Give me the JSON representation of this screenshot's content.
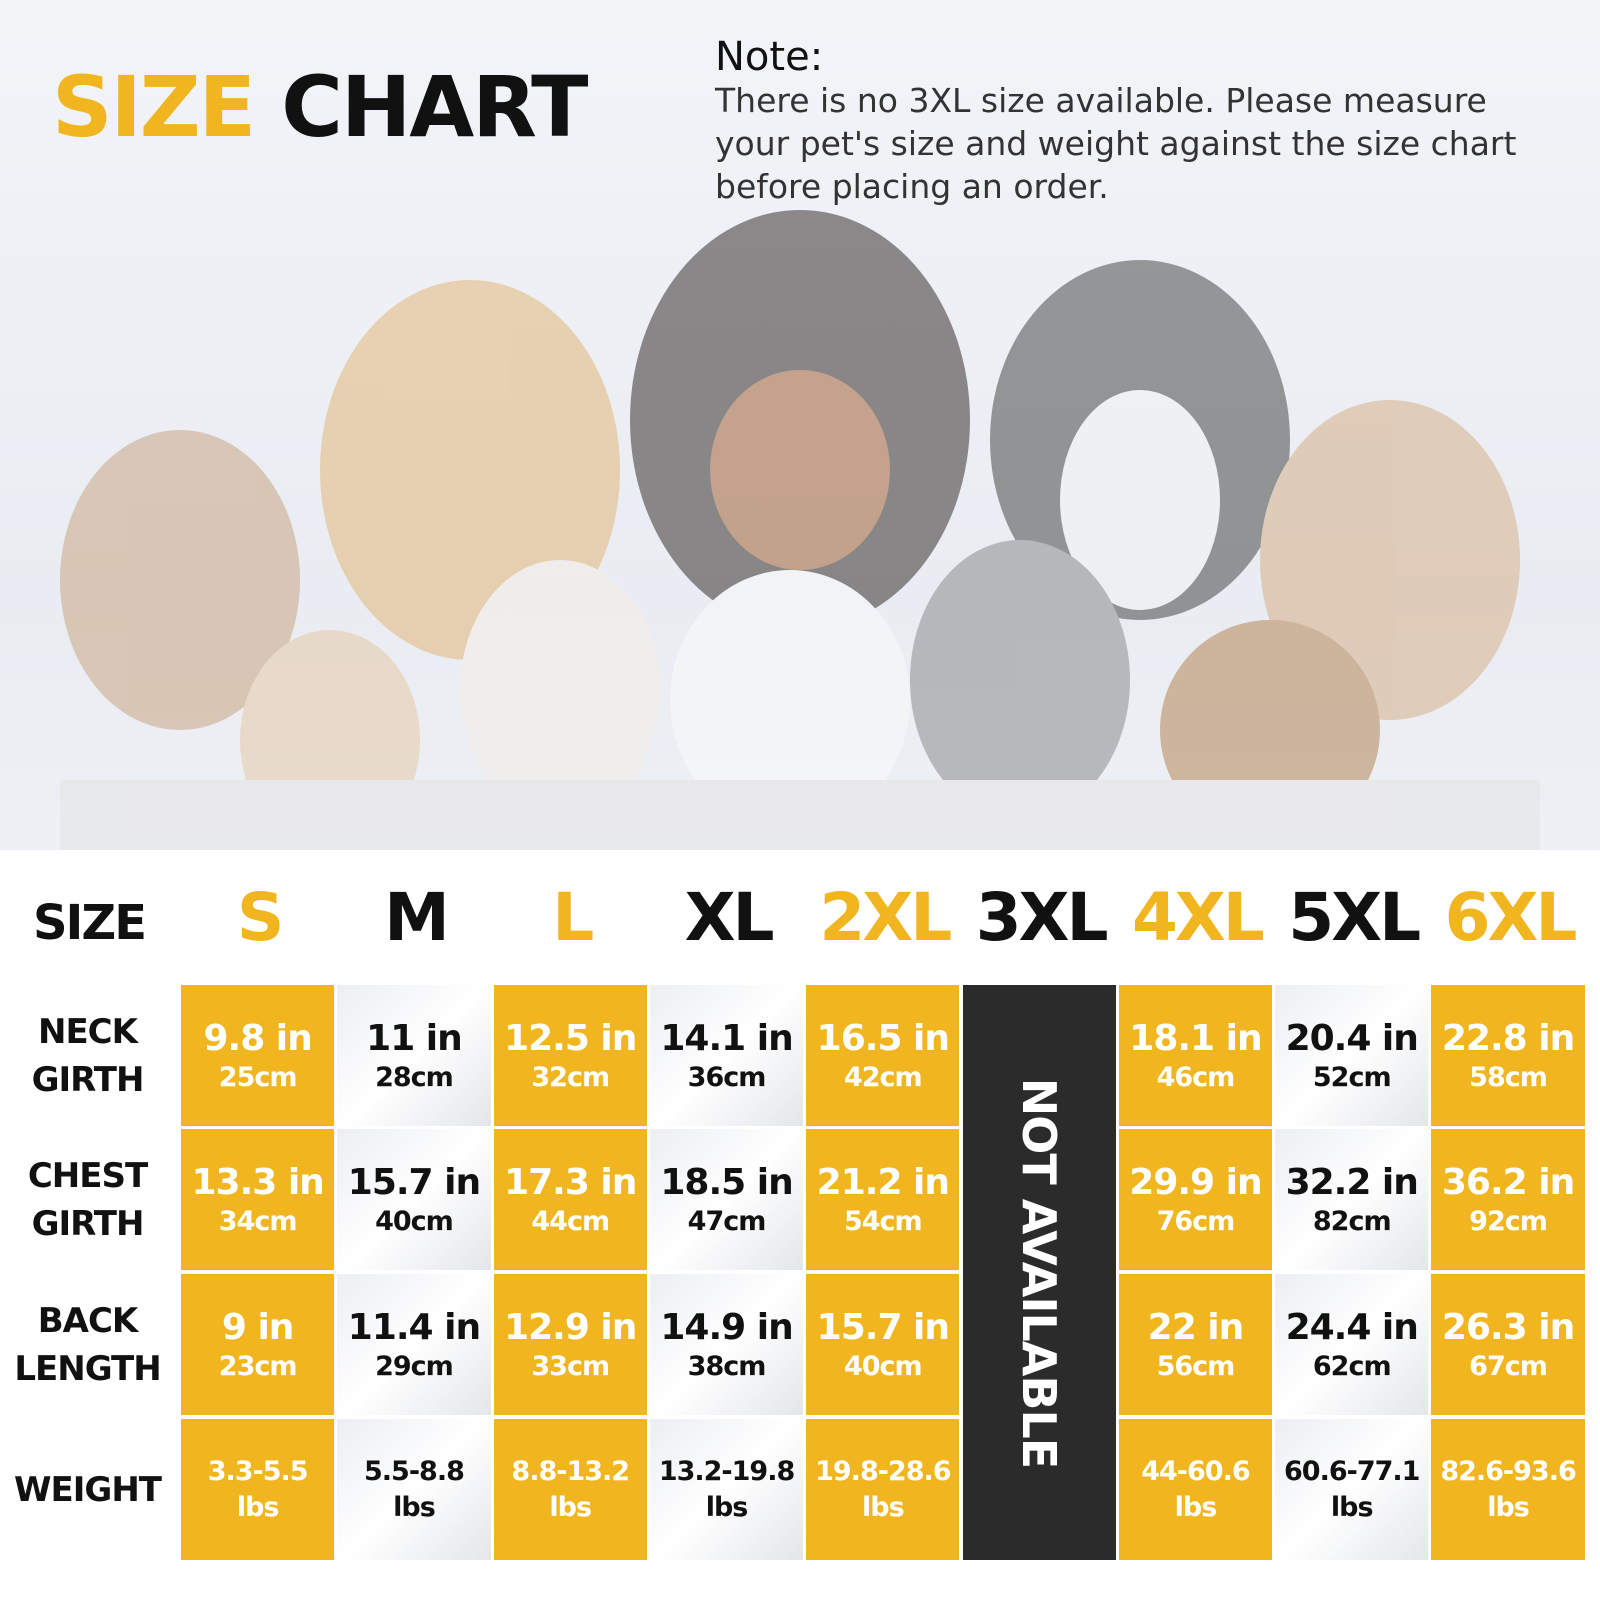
{
  "header": {
    "title": [
      "SIZE",
      "CHART"
    ],
    "note_heading": "Note:",
    "note_lines": [
      "There is no 3XL size available. Please measure",
      "your pet's size and weight against the size chart",
      "before placing an order."
    ]
  },
  "table": {
    "corner": "SIZE",
    "sizes": [
      "S",
      "M",
      "L",
      "XL",
      "2XL",
      "3XL",
      "4XL",
      "5XL",
      "6XL"
    ],
    "unavailable": "NOT AVAILABLE",
    "rows": [
      {
        "label": [
          "NECK",
          "GIRTH"
        ],
        "cells": [
          [
            "9.8 in",
            "25cm"
          ],
          [
            "11 in",
            "28cm"
          ],
          [
            "12.5 in",
            "32cm"
          ],
          [
            "14.1 in",
            "36cm"
          ],
          [
            "16.5 in",
            "42cm"
          ],
          null,
          [
            "18.1 in",
            "46cm"
          ],
          [
            "20.4 in",
            "52cm"
          ],
          [
            "22.8 in",
            "58cm"
          ]
        ]
      },
      {
        "label": [
          "CHEST",
          "GIRTH"
        ],
        "cells": [
          [
            "13.3 in",
            "34cm"
          ],
          [
            "15.7 in",
            "40cm"
          ],
          [
            "17.3 in",
            "44cm"
          ],
          [
            "18.5 in",
            "47cm"
          ],
          [
            "21.2 in",
            "54cm"
          ],
          null,
          [
            "29.9 in",
            "76cm"
          ],
          [
            "32.2 in",
            "82cm"
          ],
          [
            "36.2 in",
            "92cm"
          ]
        ]
      },
      {
        "label": [
          "BACK",
          "LENGTH"
        ],
        "cells": [
          [
            "9 in",
            "23cm"
          ],
          [
            "11.4 in",
            "29cm"
          ],
          [
            "12.9 in",
            "33cm"
          ],
          [
            "14.9 in",
            "38cm"
          ],
          [
            "15.7 in",
            "40cm"
          ],
          null,
          [
            "22 in",
            "56cm"
          ],
          [
            "24.4 in",
            "62cm"
          ],
          [
            "26.3 in",
            "67cm"
          ]
        ]
      },
      {
        "label": [
          "WEIGHT"
        ],
        "cells": [
          [
            "3.3-5.5",
            "lbs"
          ],
          [
            "5.5-8.8",
            "lbs"
          ],
          [
            "8.8-13.2",
            "lbs"
          ],
          [
            "13.2-19.8",
            "lbs"
          ],
          [
            "19.8-28.6",
            "lbs"
          ],
          null,
          [
            "44-60.6",
            "lbs"
          ],
          [
            "60.6-77.1",
            "lbs"
          ],
          [
            "82.6-93.6",
            "lbs"
          ]
        ]
      }
    ]
  }
}
